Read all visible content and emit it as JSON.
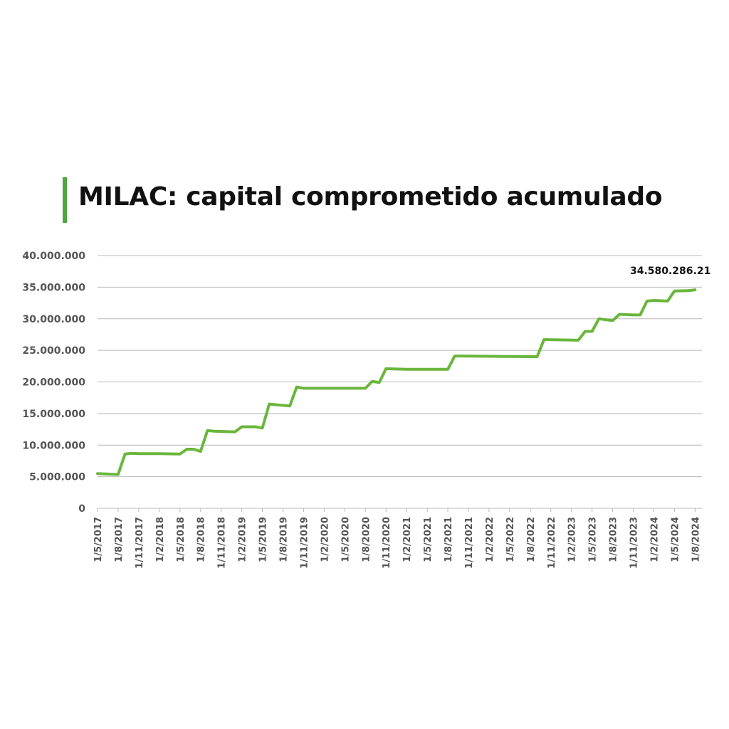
{
  "title": "MILAC: capital comprometido acumulado",
  "colors": {
    "accent": "#4ea63f",
    "line": "#6ab63d",
    "grid": "#b8b8b8",
    "text": "#111111",
    "tick_text": "#555555"
  },
  "chart_data": {
    "type": "line",
    "title": "MILAC: capital comprometido acumulado",
    "xlabel": "",
    "ylabel": "",
    "ylim": [
      0,
      40000000
    ],
    "grid": true,
    "yticks": [
      0,
      5000000,
      10000000,
      15000000,
      20000000,
      25000000,
      30000000,
      35000000,
      40000000
    ],
    "ytick_labels": [
      "0",
      "5.000.000",
      "10.000.000",
      "15.000.000",
      "20.000.000",
      "25.000.000",
      "30.000.000",
      "35.000.000",
      "40.000.000"
    ],
    "x_tick_labels": [
      "1/5/2017",
      "1/8/2017",
      "1/11/2017",
      "1/2/2018",
      "1/5/2018",
      "1/8/2018",
      "1/11/2018",
      "1/2/2019",
      "1/5/2019",
      "1/8/2019",
      "1/11/2019",
      "1/2/2020",
      "1/5/2020",
      "1/8/2020",
      "1/11/2020",
      "1/2/2021",
      "1/5/2021",
      "1/8/2021",
      "1/11/2021",
      "1/2/2022",
      "1/5/2022",
      "1/8/2022",
      "1/11/2022",
      "1/2/2023",
      "1/5/2023",
      "1/8/2023",
      "1/11/2023",
      "1/2/2024",
      "1/5/2024",
      "1/8/2024"
    ],
    "annotation": "34.580.286.21",
    "series": [
      {
        "x": [
          "2017-05",
          "2017-08",
          "2017-09",
          "2017-10",
          "2017-11",
          "2018-02",
          "2018-05",
          "2018-06",
          "2018-07",
          "2018-08",
          "2018-09",
          "2018-10",
          "2019-01",
          "2019-02",
          "2019-04",
          "2019-05",
          "2019-06",
          "2019-09",
          "2019-10",
          "2019-11",
          "2020-08",
          "2020-09",
          "2020-10",
          "2020-11",
          "2021-02",
          "2021-08",
          "2021-09",
          "2021-10",
          "2022-08",
          "2022-09",
          "2022-10",
          "2023-03",
          "2023-04",
          "2023-05",
          "2023-06",
          "2023-08",
          "2023-09",
          "2023-11",
          "2023-12",
          "2024-01",
          "2024-02",
          "2024-04",
          "2024-05",
          "2024-07",
          "2024-08"
        ],
        "values": [
          5500000,
          5350000,
          8600000,
          8700000,
          8650000,
          8650000,
          8600000,
          9350000,
          9350000,
          9000000,
          12300000,
          12200000,
          12100000,
          12900000,
          12900000,
          12700000,
          16500000,
          16200000,
          19200000,
          19000000,
          19000000,
          20100000,
          19900000,
          22100000,
          22000000,
          22000000,
          24100000,
          24100000,
          24000000,
          24000000,
          26700000,
          26600000,
          28000000,
          28000000,
          30000000,
          29700000,
          30700000,
          30600000,
          30600000,
          32800000,
          32900000,
          32800000,
          34400000,
          34450000,
          34580286.21
        ]
      }
    ]
  }
}
